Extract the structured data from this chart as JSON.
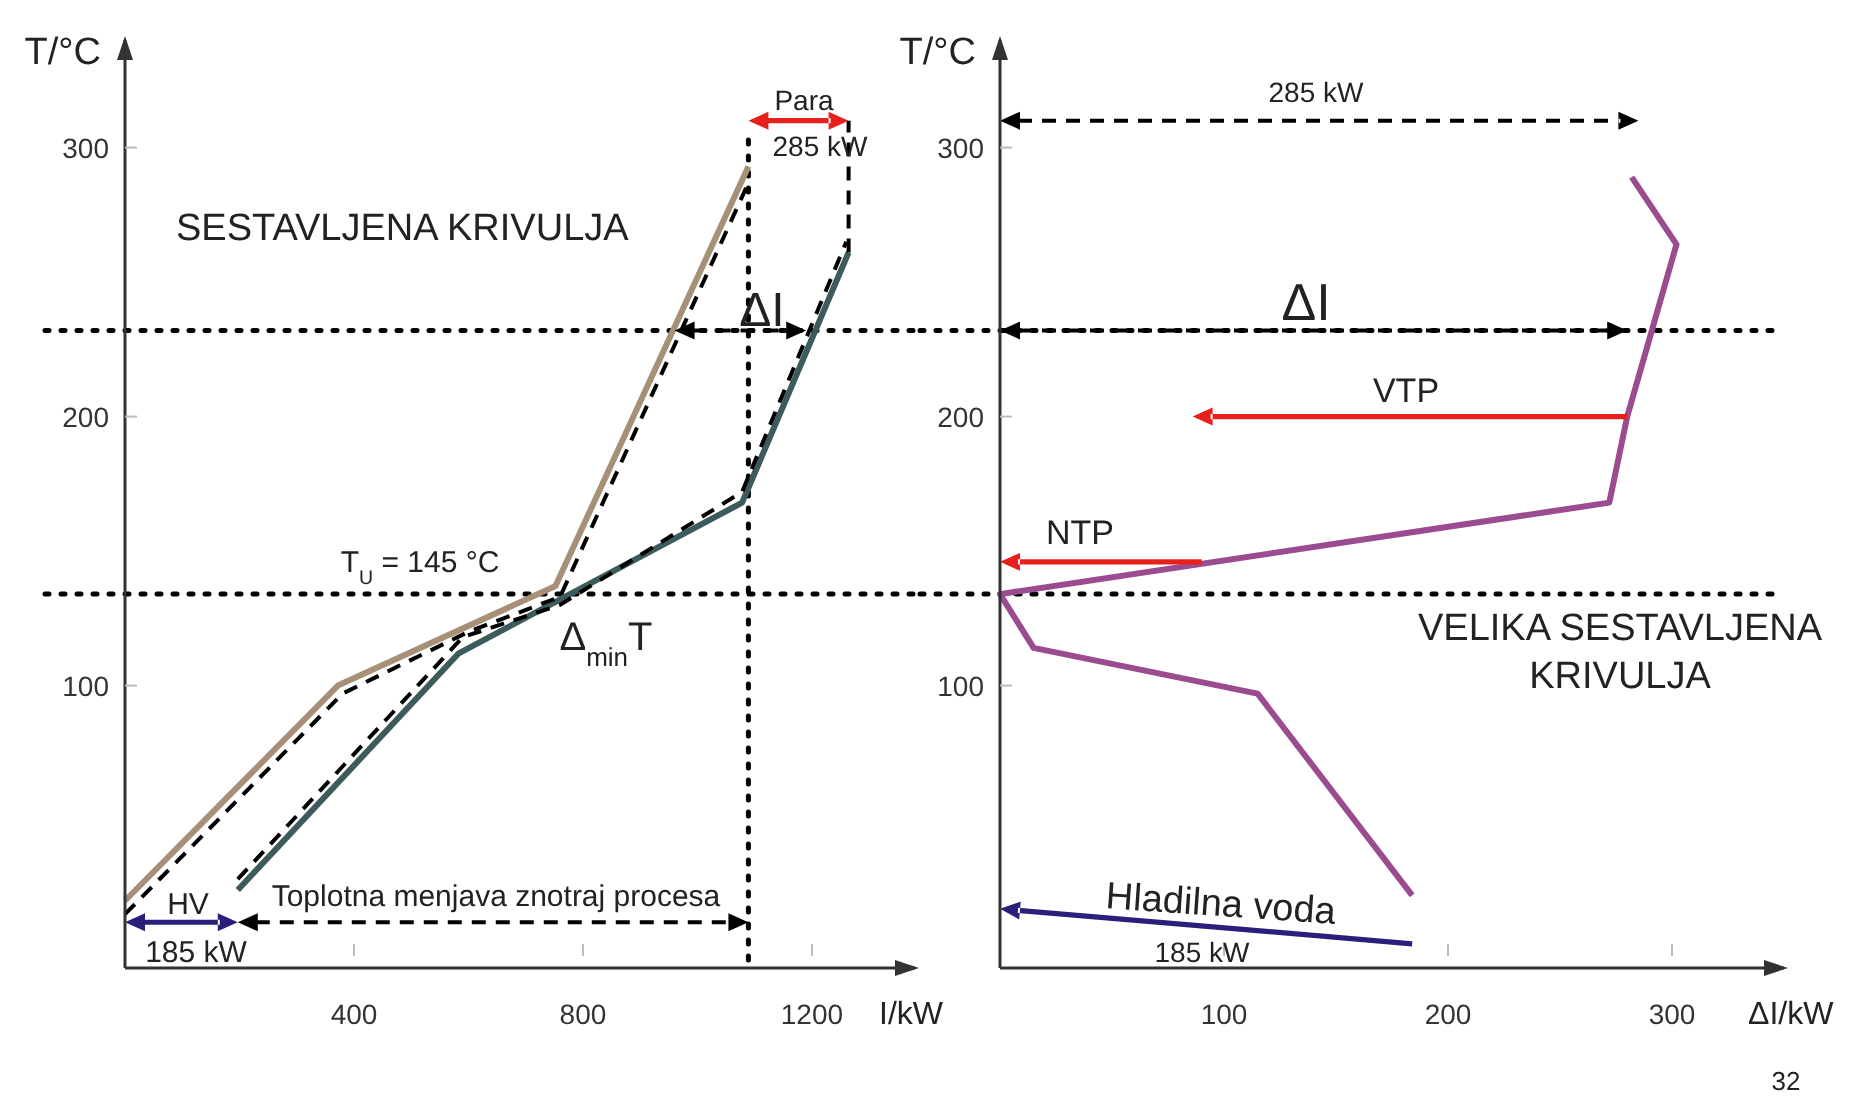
{
  "chart_data": [
    {
      "type": "line",
      "title": "SESTAVLJENA KRIVULJA",
      "xlabel": "I/kW",
      "ylabel": "T/°C",
      "xlim": [
        0,
        1380
      ],
      "ylim": [
        -5,
        340
      ],
      "xticks": [
        400,
        800,
        1200
      ],
      "yticks": [
        100,
        200,
        300
      ],
      "series": [
        {
          "color": "#a89078",
          "x": [
            0,
            372,
            752,
            1089
          ],
          "values": [
            20,
            100,
            137,
            293
          ]
        },
        {
          "color": "#3d5a5c",
          "x": [
            197,
            583,
            1078,
            1264
          ],
          "values": [
            24,
            112,
            168,
            261
          ]
        },
        {
          "color": "#000000",
          "line_style": "dashed",
          "x": [
            0,
            380,
            600,
            760,
            1085
          ],
          "values": [
            15,
            97,
            120,
            133,
            285
          ]
        },
        {
          "color": "#000000",
          "line_style": "dashed",
          "x": [
            197,
            590,
            760,
            1078,
            1260
          ],
          "values": [
            28,
            118,
            130,
            172,
            265
          ]
        },
        {
          "color": "#000000",
          "line_style": "dashed",
          "x": [
            1264,
            1264
          ],
          "values": [
            261,
            310
          ]
        }
      ],
      "ref_lines": [
        {
          "axis": "y",
          "value": 134,
          "line_style": "dotted"
        },
        {
          "axis": "y",
          "value": 232,
          "line_style": "dotted"
        },
        {
          "axis": "x",
          "value": 1089,
          "line_style": "dotted"
        }
      ],
      "annotations": [
        "T$_{U}$ = 145 °C",
        "Δ$_{min}$T",
        "ΔI",
        "Para",
        "285 kW",
        "HV",
        "185 kW",
        "Toplotna menjava znotraj procesa"
      ]
    },
    {
      "type": "line",
      "title": "VELIKA SESTAVLJENA KRIVULJA",
      "xlabel": "ΔI/kW",
      "ylabel": "T/°C",
      "xlim": [
        0,
        350
      ],
      "ylim": [
        -5,
        340
      ],
      "xticks": [
        100,
        200,
        300
      ],
      "yticks": [
        100,
        200,
        300
      ],
      "series": [
        {
          "color": "#9b4b8f",
          "x": [
            282,
            302,
            280,
            272,
            0,
            15,
            115,
            184
          ],
          "values": [
            289,
            264,
            200,
            168,
            134,
            114,
            97,
            22
          ]
        }
      ],
      "ref_lines": [
        {
          "axis": "y",
          "value": 134,
          "line_style": "dotted"
        },
        {
          "axis": "y",
          "value": 232,
          "line_style": "dotted"
        }
      ],
      "annotations": [
        "285 kW",
        "ΔI",
        "VTP",
        "NTP",
        "Hladilna voda",
        "185 kW",
        "32"
      ]
    }
  ]
}
